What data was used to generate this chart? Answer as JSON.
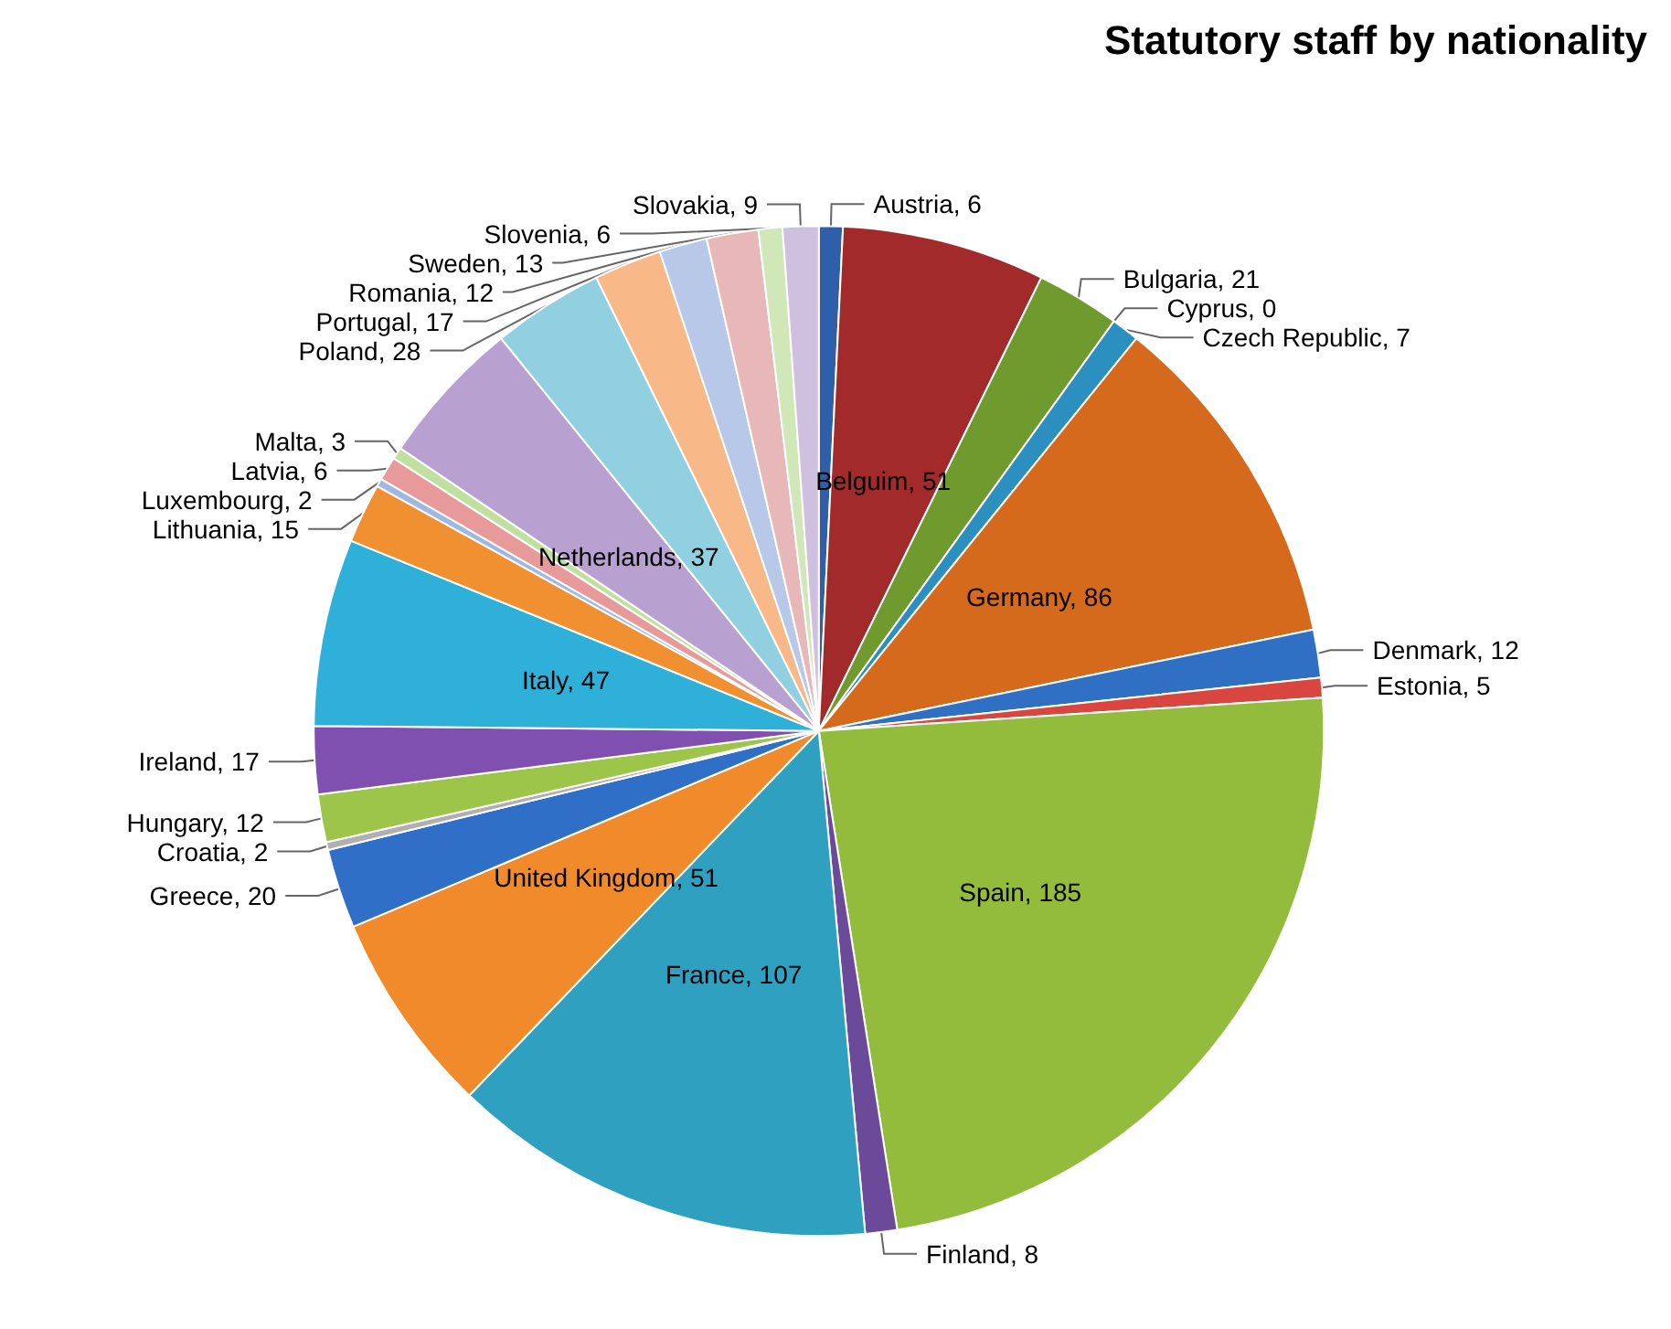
{
  "chart_data": {
    "type": "pie",
    "title": "Statutory staff by nationality",
    "categories": [
      "Austria, 6",
      "Belguim, 51",
      "Bulgaria, 21",
      "Cyprus, 0",
      "Czech Republic, 7",
      "Germany, 86",
      "Denmark, 12",
      "Estonia, 5",
      "Spain, 185",
      "Finland, 8",
      "France, 107",
      "United Kingdom, 51",
      "Greece, 20",
      "Croatia, 2",
      "Hungary, 12",
      "Ireland, 17",
      "Italy, 47",
      "Lithuania, 15",
      "Luxembourg, 2",
      "Latvia, 6",
      "Malta, 3",
      "Netherlands, 37",
      "Poland, 28",
      "Portugal, 17",
      "Romania, 12",
      "Sweden, 13",
      "Slovenia, 6",
      "Slovakia, 9"
    ],
    "values": [
      6,
      51,
      21,
      0,
      7,
      86,
      12,
      5,
      185,
      8,
      107,
      51,
      20,
      2,
      12,
      17,
      47,
      15,
      2,
      6,
      3,
      37,
      28,
      17,
      12,
      13,
      6,
      9
    ],
    "colors": [
      "#2e5fa8",
      "#a32a2a",
      "#6e9a2e",
      "#2b9bc0",
      "#2b8fc0",
      "#d5691c",
      "#2f6fc4",
      "#d9453f",
      "#93bc3c",
      "#6b4a9a",
      "#2fa0c0",
      "#f08a2a",
      "#2f6fc8",
      "#b0b0b0",
      "#9cc54a",
      "#8050b0",
      "#2fb0d8",
      "#f09030",
      "#a0b8e0",
      "#e89a9a",
      "#c0e0a0",
      "#b8a0d0",
      "#90d0e0",
      "#f8b888",
      "#b8c8e8",
      "#e8b8b8",
      "#d0e8b8",
      "#d0c0e0"
    ]
  }
}
